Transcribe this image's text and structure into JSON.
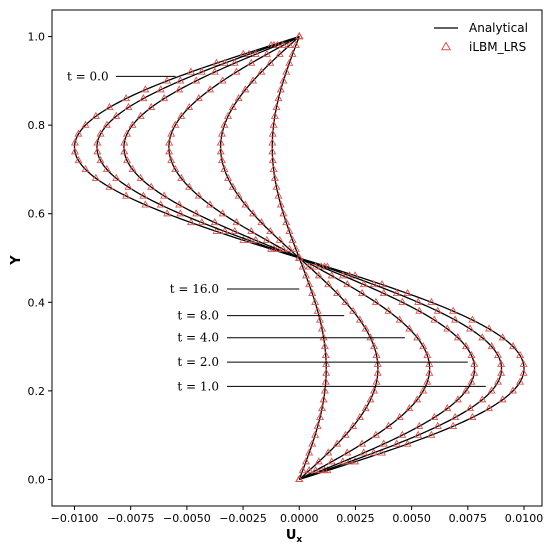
{
  "chart_data": {
    "type": "line",
    "xlabel": "U",
    "xlabel_sub": "x",
    "ylabel": "Y",
    "xlim": [
      -0.011,
      0.0108
    ],
    "ylim": [
      -0.06,
      1.06
    ],
    "xticks": [
      -0.01,
      -0.0075,
      -0.005,
      -0.0025,
      0.0,
      0.0025,
      0.005,
      0.0075,
      0.01
    ],
    "xtick_labels": [
      "−0.0100",
      "−0.0075",
      "−0.0050",
      "−0.0025",
      "0.0000",
      "0.0025",
      "0.0050",
      "0.0075",
      "0.0100"
    ],
    "yticks": [
      0.0,
      0.2,
      0.4,
      0.6,
      0.8,
      1.0
    ],
    "ytick_labels": [
      "0.0",
      "0.2",
      "0.4",
      "0.6",
      "0.8",
      "1.0"
    ],
    "grid": false,
    "legend_position": "top-right",
    "legend": [
      {
        "label": "Analytical",
        "marker": "line",
        "color": "#000000"
      },
      {
        "label": "iLBM_LRS",
        "marker": "triangle",
        "color": "#d9534f"
      }
    ],
    "line_color": "#000000",
    "marker_color": "#d9534f",
    "series": [
      {
        "label": "t = 0.0",
        "amplitude": 0.01
      },
      {
        "label": "t = 1.0",
        "amplitude": 0.009
      },
      {
        "label": "t = 2.0",
        "amplitude": 0.0078
      },
      {
        "label": "t = 4.0",
        "amplitude": 0.0058
      },
      {
        "label": "t = 8.0",
        "amplitude": 0.0035
      },
      {
        "label": "t = 16.0",
        "amplitude": 0.0012
      }
    ],
    "profile": "Ux = amplitude * sin(2*pi*Y)",
    "annotations": [
      {
        "text": "t = 0.0",
        "side": "left",
        "y": 0.91,
        "x_end": -0.0055
      },
      {
        "text": "t = 16.0",
        "side": "right",
        "y": 0.43,
        "x_end": 0.0
      },
      {
        "text": "t = 8.0",
        "side": "right",
        "y": 0.37,
        "x_end": 0.002
      },
      {
        "text": "t = 4.0",
        "side": "right",
        "y": 0.32,
        "x_end": 0.0047
      },
      {
        "text": "t = 2.0",
        "side": "right",
        "y": 0.265,
        "x_end": 0.0075
      },
      {
        "text": "t = 1.0",
        "side": "right",
        "y": 0.21,
        "x_end": 0.0083
      }
    ]
  }
}
